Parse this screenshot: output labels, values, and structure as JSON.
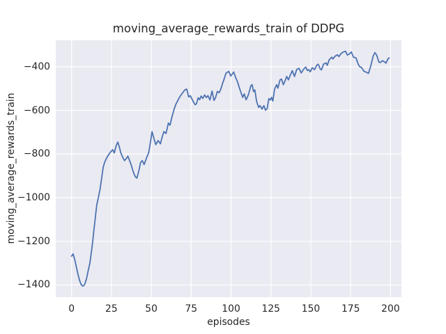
{
  "chart_data": {
    "type": "line",
    "title": "moving_average_rewards_train of DDPG",
    "xlabel": "episodes",
    "ylabel": "moving_average_rewards_train",
    "x_ticks": [
      0,
      25,
      50,
      75,
      100,
      125,
      150,
      175,
      200
    ],
    "x_tick_labels": [
      "0",
      "25",
      "50",
      "75",
      "100",
      "125",
      "150",
      "175",
      "200"
    ],
    "y_ticks": [
      -400,
      -600,
      -800,
      -1000,
      -1200,
      -1400
    ],
    "y_tick_labels": [
      "−400",
      "−600",
      "−800",
      "−1000",
      "−1200",
      "−1400"
    ],
    "xlim": [
      -9.9,
      206.8
    ],
    "ylim": [
      -1456.5,
      -277.5
    ],
    "grid": true,
    "legend": false,
    "style": {
      "figure_background": "#ffffff",
      "axes_background": "#eaeaf2",
      "grid_color": "#ffffff",
      "line_color": "#4c72b0",
      "text_color": "#262626",
      "line_width": 1.8
    },
    "series": [
      {
        "name": "moving_average_rewards_train",
        "points": [
          [
            0,
            -1268
          ],
          [
            1,
            -1258
          ],
          [
            2,
            -1283
          ],
          [
            3,
            -1316
          ],
          [
            4,
            -1350
          ],
          [
            5,
            -1378
          ],
          [
            6,
            -1398
          ],
          [
            7,
            -1405
          ],
          [
            7.7,
            -1403
          ],
          [
            8.5,
            -1393
          ],
          [
            9.5,
            -1368
          ],
          [
            10.5,
            -1332
          ],
          [
            11.5,
            -1300
          ],
          [
            12.5,
            -1245
          ],
          [
            13.2,
            -1205
          ],
          [
            14,
            -1150
          ],
          [
            15,
            -1085
          ],
          [
            15.8,
            -1035
          ],
          [
            16.8,
            -1000
          ],
          [
            17.8,
            -965
          ],
          [
            18.8,
            -915
          ],
          [
            19.8,
            -862
          ],
          [
            20.7,
            -839
          ],
          [
            22,
            -818
          ],
          [
            23.5,
            -800
          ],
          [
            24.8,
            -788
          ],
          [
            25.8,
            -780
          ],
          [
            26.8,
            -795
          ],
          [
            28,
            -762
          ],
          [
            29,
            -745
          ],
          [
            30,
            -768
          ],
          [
            30.9,
            -795
          ],
          [
            32.3,
            -818
          ],
          [
            33.2,
            -830
          ],
          [
            34.2,
            -822
          ],
          [
            35.3,
            -810
          ],
          [
            36.5,
            -832
          ],
          [
            37.5,
            -852
          ],
          [
            38.9,
            -886
          ],
          [
            40,
            -904
          ],
          [
            41,
            -910
          ],
          [
            42.2,
            -876
          ],
          [
            43.3,
            -838
          ],
          [
            44.3,
            -830
          ],
          [
            45.5,
            -848
          ],
          [
            46.9,
            -820
          ],
          [
            48.4,
            -793
          ],
          [
            49.4,
            -750
          ],
          [
            50.5,
            -697
          ],
          [
            51.6,
            -728
          ],
          [
            52.8,
            -757
          ],
          [
            54.3,
            -738
          ],
          [
            55.7,
            -753
          ],
          [
            56.8,
            -722
          ],
          [
            57.9,
            -697
          ],
          [
            59.2,
            -706
          ],
          [
            60.7,
            -658
          ],
          [
            61.7,
            -668
          ],
          [
            63,
            -628
          ],
          [
            64.4,
            -592
          ],
          [
            65.5,
            -570
          ],
          [
            66.5,
            -556
          ],
          [
            68,
            -536
          ],
          [
            69.5,
            -521
          ],
          [
            71,
            -506
          ],
          [
            72.2,
            -502
          ],
          [
            73.4,
            -538
          ],
          [
            74.4,
            -532
          ],
          [
            75.5,
            -548
          ],
          [
            76.5,
            -562
          ],
          [
            77.5,
            -574
          ],
          [
            78.3,
            -570
          ],
          [
            79.4,
            -542
          ],
          [
            80.3,
            -551
          ],
          [
            81.2,
            -534
          ],
          [
            82.3,
            -545
          ],
          [
            83.4,
            -529
          ],
          [
            84.5,
            -541
          ],
          [
            85.5,
            -532
          ],
          [
            86.8,
            -552
          ],
          [
            88.1,
            -511
          ],
          [
            89.3,
            -554
          ],
          [
            90.3,
            -541
          ],
          [
            91.4,
            -513
          ],
          [
            92.5,
            -519
          ],
          [
            93.6,
            -502
          ],
          [
            94.5,
            -480
          ],
          [
            95.4,
            -462
          ],
          [
            96.8,
            -430
          ],
          [
            97.7,
            -425
          ],
          [
            98.6,
            -421
          ],
          [
            99.8,
            -442
          ],
          [
            100.9,
            -432
          ],
          [
            101.7,
            -424
          ],
          [
            102.8,
            -448
          ],
          [
            104,
            -468
          ],
          [
            105.2,
            -495
          ],
          [
            106.3,
            -520
          ],
          [
            107.3,
            -540
          ],
          [
            108.3,
            -524
          ],
          [
            109.4,
            -551
          ],
          [
            110.5,
            -535
          ],
          [
            111.5,
            -512
          ],
          [
            112.4,
            -487
          ],
          [
            113.2,
            -482
          ],
          [
            114.1,
            -514
          ],
          [
            114.9,
            -506
          ],
          [
            116,
            -558
          ],
          [
            117.3,
            -586
          ],
          [
            118.2,
            -578
          ],
          [
            119.4,
            -594
          ],
          [
            120.6,
            -578
          ],
          [
            121.6,
            -599
          ],
          [
            122.6,
            -592
          ],
          [
            123.7,
            -546
          ],
          [
            124.6,
            -552
          ],
          [
            125.4,
            -540
          ],
          [
            126.2,
            -557
          ],
          [
            127.3,
            -503
          ],
          [
            128.6,
            -482
          ],
          [
            129.4,
            -498
          ],
          [
            130.7,
            -460
          ],
          [
            131.6,
            -456
          ],
          [
            132.8,
            -482
          ],
          [
            134,
            -462
          ],
          [
            134.9,
            -444
          ],
          [
            136,
            -460
          ],
          [
            137.1,
            -439
          ],
          [
            138.4,
            -418
          ],
          [
            139.8,
            -444
          ],
          [
            141.2,
            -412
          ],
          [
            142.6,
            -407
          ],
          [
            144,
            -428
          ],
          [
            145.4,
            -412
          ],
          [
            146.8,
            -401
          ],
          [
            147.8,
            -417
          ],
          [
            148.7,
            -413
          ],
          [
            149.6,
            -423
          ],
          [
            150.9,
            -404
          ],
          [
            152.3,
            -413
          ],
          [
            153.7,
            -393
          ],
          [
            154.7,
            -388
          ],
          [
            155.9,
            -410
          ],
          [
            156.7,
            -414
          ],
          [
            158,
            -388
          ],
          [
            159.5,
            -382
          ],
          [
            160.3,
            -393
          ],
          [
            161.6,
            -367
          ],
          [
            163.1,
            -356
          ],
          [
            163.9,
            -364
          ],
          [
            165.3,
            -351
          ],
          [
            166.7,
            -345
          ],
          [
            167.6,
            -353
          ],
          [
            168.9,
            -340
          ],
          [
            170.3,
            -332
          ],
          [
            171.8,
            -329
          ],
          [
            172.9,
            -346
          ],
          [
            174.1,
            -342
          ],
          [
            175.4,
            -332
          ],
          [
            176.8,
            -356
          ],
          [
            178.3,
            -359
          ],
          [
            179.7,
            -388
          ],
          [
            180.5,
            -398
          ],
          [
            181.9,
            -404
          ],
          [
            183.3,
            -420
          ],
          [
            184.8,
            -425
          ],
          [
            186.2,
            -430
          ],
          [
            187.7,
            -393
          ],
          [
            189.1,
            -351
          ],
          [
            190.2,
            -335
          ],
          [
            191.3,
            -346
          ],
          [
            192.7,
            -378
          ],
          [
            193.5,
            -381
          ],
          [
            194.9,
            -372
          ],
          [
            196.3,
            -378
          ],
          [
            197.1,
            -383
          ],
          [
            198.5,
            -362
          ],
          [
            199.2,
            -360
          ]
        ]
      }
    ]
  }
}
